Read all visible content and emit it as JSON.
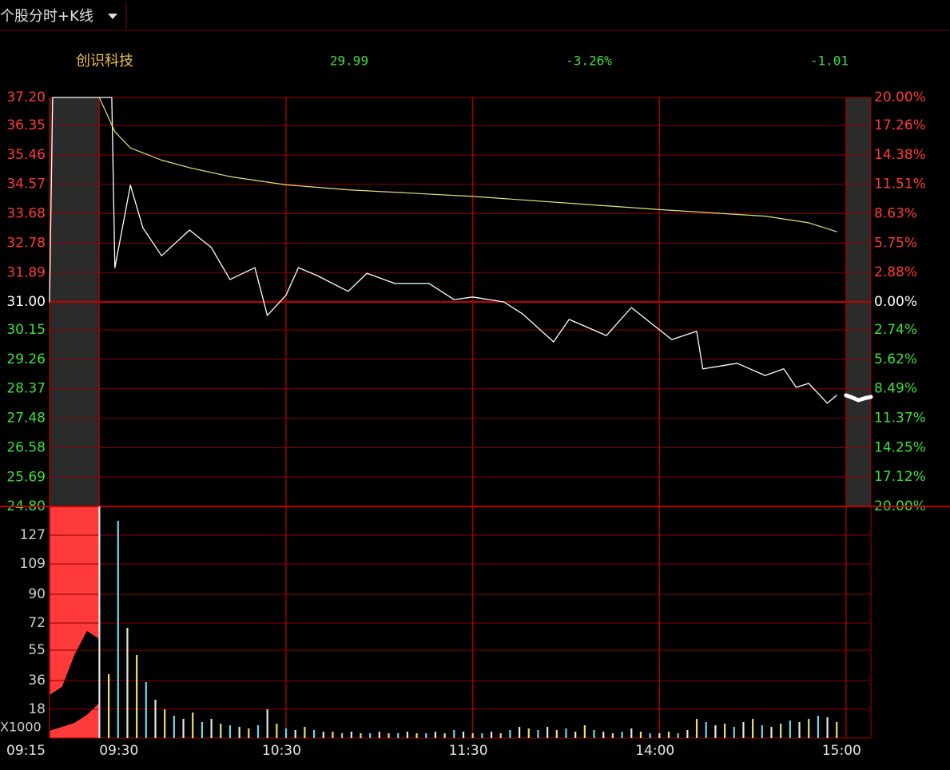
{
  "header": {
    "tab": "个股分时+K线",
    "stock_name": "创识科技",
    "last": 29.99,
    "change_percent": {
      "value": -3.26,
      "label": "-3.26%"
    },
    "change": -1.01
  },
  "chart_data": [
    {
      "type": "line",
      "grid": true,
      "xlim": [
        -16,
        248
      ],
      "xticks": [
        {
          "value": -16,
          "label": "09:15"
        },
        {
          "value": 0,
          "label": "09:30"
        },
        {
          "value": 60,
          "label": "10:30"
        },
        {
          "value": 120,
          "label": "11:30"
        },
        {
          "value": 180,
          "label": "14:00"
        },
        {
          "value": 240,
          "label": "15:00"
        }
      ],
      "ylim": [
        24.8,
        37.2
      ],
      "yticks": [
        {
          "value": 37.2,
          "label": "37.20"
        },
        36.35,
        35.46,
        34.57,
        33.68,
        32.78,
        31.89,
        {
          "value": 31,
          "label": "31.00"
        },
        30.15,
        29.26,
        28.37,
        27.48,
        26.58,
        25.69,
        {
          "value": 24.8,
          "label": "24.80"
        }
      ],
      "y2lim": [
        -20,
        20
      ],
      "y2ticks": [
        {
          "value": 20,
          "label": "20.00%"
        },
        {
          "value": 17.26,
          "label": "17.26%"
        },
        {
          "value": 14.38,
          "label": "14.38%"
        },
        {
          "value": 11.51,
          "label": "11.51%"
        },
        {
          "value": 8.63,
          "label": "8.63%"
        },
        {
          "value": 5.75,
          "label": "5.75%"
        },
        {
          "value": 2.88,
          "label": "2.88%"
        },
        {
          "value": 0,
          "label": "0.00%"
        },
        {
          "value": -2.74,
          "label": "2.74%"
        },
        {
          "value": -5.62,
          "label": "5.62%"
        },
        {
          "value": -8.49,
          "label": "8.49%"
        },
        {
          "value": -11.37,
          "label": "11.37%"
        },
        {
          "value": -14.25,
          "label": "14.25%"
        },
        {
          "value": -17.12,
          "label": "17.12%"
        },
        {
          "value": -20,
          "label": "20.00%"
        }
      ],
      "series": [
        {
          "color": "#ffffff",
          "width": 1.3,
          "x": [
            -16,
            -15,
            0,
            4,
            5,
            10,
            14,
            20,
            29,
            36,
            42,
            50,
            54,
            60,
            64,
            70,
            80,
            86,
            95,
            106,
            114,
            120,
            130,
            136,
            146,
            151,
            163,
            171,
            184,
            192,
            194,
            205,
            214,
            220,
            224,
            228,
            234,
            237
          ],
          "values": [
            31.0,
            37.2,
            37.2,
            37.2,
            32.04,
            34.54,
            33.25,
            32.4,
            33.18,
            32.65,
            31.68,
            32.04,
            30.59,
            31.2,
            32.04,
            31.8,
            31.32,
            31.87,
            31.56,
            31.56,
            31.07,
            31.15,
            31.0,
            30.64,
            29.79,
            30.47,
            29.98,
            30.83,
            29.86,
            30.11,
            28.97,
            29.14,
            28.77,
            28.97,
            28.41,
            28.53,
            27.93,
            28.17
          ]
        },
        {
          "color": "#e8e07a",
          "width": 1.2,
          "x": [
            0,
            5,
            10,
            20,
            29,
            42,
            60,
            80,
            120,
            150,
            180,
            214,
            228,
            237
          ],
          "values": [
            37.2,
            36.16,
            35.67,
            35.3,
            35.07,
            34.8,
            34.55,
            34.4,
            34.2,
            34.0,
            33.8,
            33.6,
            33.4,
            33.13
          ]
        },
        {
          "color": "#ffffff",
          "width": 5,
          "x": [
            240,
            242,
            244,
            246,
            248
          ],
          "values": [
            28.17,
            28.1,
            28.02,
            28.08,
            28.12
          ]
        }
      ]
    },
    {
      "type": "bar",
      "y_label": "X1000",
      "ylim": [
        0,
        145
      ],
      "yticks": [
        127,
        109,
        90,
        72,
        55,
        36,
        18
      ],
      "areas": [
        {
          "color": "#ff3a3a",
          "x": [
            -16,
            -12,
            -8,
            -4,
            0
          ],
          "values": [
            145,
            145,
            145,
            145,
            145
          ]
        },
        {
          "color": "#000000",
          "x": [
            -16,
            -12,
            -8,
            -4,
            0
          ],
          "values": [
            27,
            32,
            52,
            67,
            62
          ]
        },
        {
          "color": "#ff3a3a",
          "x": [
            -16,
            -12,
            -8,
            -4,
            0
          ],
          "values": [
            4.5,
            7,
            9.5,
            14.5,
            22
          ]
        }
      ],
      "colors": [
        "#e6e6e6",
        "#e8e070",
        "#6fd6e6"
      ],
      "x": [
        0,
        3,
        6,
        9,
        12,
        15,
        18,
        21,
        24,
        27,
        30,
        33,
        36,
        39,
        42,
        45,
        48,
        51,
        54,
        57,
        60,
        63,
        66,
        69,
        72,
        75,
        78,
        81,
        84,
        87,
        90,
        93,
        96,
        99,
        102,
        105,
        108,
        111,
        114,
        117,
        120,
        123,
        126,
        129,
        132,
        135,
        138,
        141,
        144,
        147,
        150,
        153,
        156,
        159,
        162,
        165,
        168,
        171,
        174,
        177,
        180,
        183,
        186,
        189,
        192,
        195,
        198,
        201,
        204,
        207,
        210,
        213,
        216,
        219,
        222,
        225,
        228,
        231,
        234,
        237
      ],
      "values": [
        145,
        40,
        136,
        69,
        52,
        35,
        24,
        18,
        14,
        12,
        16,
        10,
        12,
        9,
        8,
        7,
        6,
        8,
        18,
        9,
        6,
        5,
        7,
        5,
        4,
        4,
        3,
        4,
        3,
        3,
        4,
        3,
        3,
        4,
        3,
        3,
        4,
        3,
        5,
        4,
        3,
        3,
        4,
        3,
        5,
        7,
        6,
        5,
        7,
        5,
        6,
        4,
        8,
        5,
        4,
        3,
        4,
        6,
        4,
        3,
        3,
        4,
        3,
        5,
        12,
        10,
        8,
        9,
        7,
        10,
        12,
        8,
        7,
        9,
        11,
        10,
        12,
        14,
        13,
        10
      ]
    }
  ]
}
